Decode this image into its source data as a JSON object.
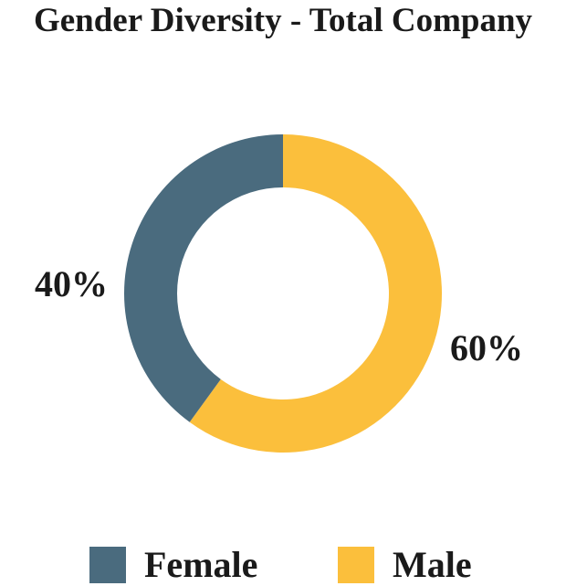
{
  "chart_data": {
    "type": "pie",
    "title": "Gender Diversity - Total Company",
    "labels": [
      "Female",
      "Male"
    ],
    "values": [
      40,
      60
    ],
    "value_labels": [
      "40%",
      "60%"
    ],
    "colors": [
      "#4a6b7e",
      "#fbbf3c"
    ],
    "donut": true,
    "legend_position": "bottom"
  }
}
